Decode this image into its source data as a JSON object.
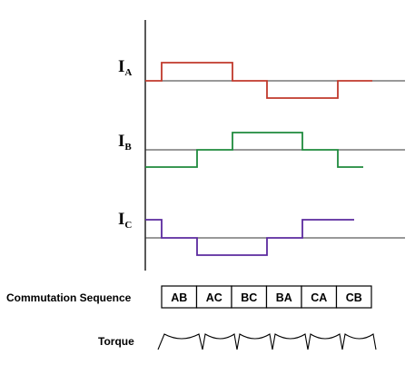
{
  "signals": [
    {
      "main": "I",
      "sub": "A",
      "color": "#c0392b",
      "name": "phase-a"
    },
    {
      "main": "I",
      "sub": "B",
      "color": "#1e8a3c",
      "name": "phase-b"
    },
    {
      "main": "I",
      "sub": "C",
      "color": "#5b2a9e",
      "name": "phase-c"
    }
  ],
  "commutation_label": "Commutation Sequence",
  "sequence": [
    "AB",
    "AC",
    "BC",
    "BA",
    "CA",
    "CB"
  ],
  "torque_label": "Torque"
}
